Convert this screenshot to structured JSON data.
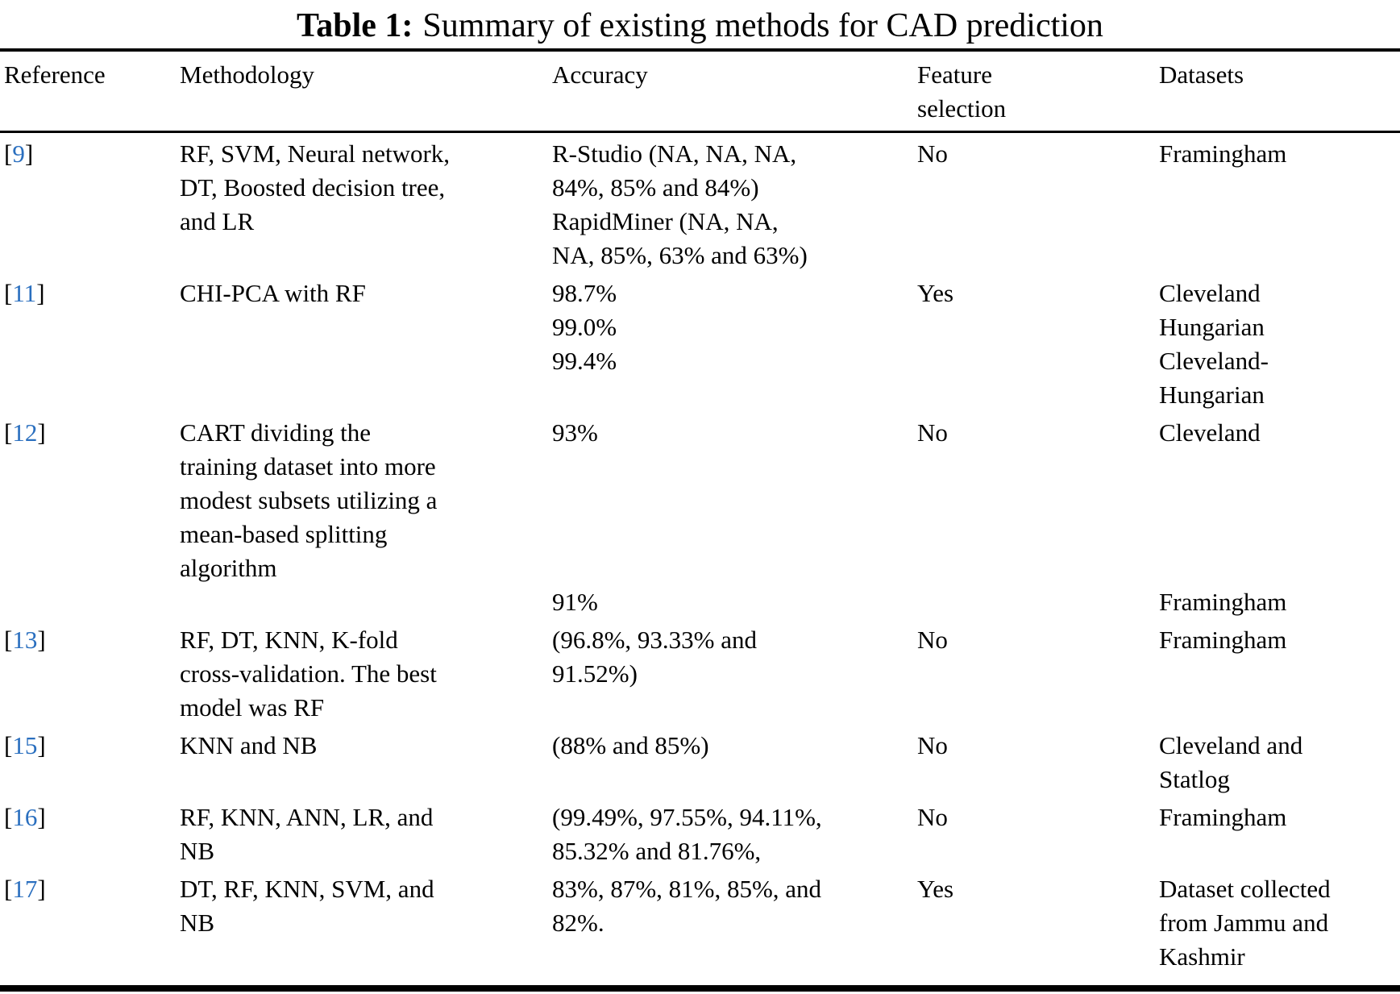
{
  "page": {
    "background": "#ffffff",
    "text_color": "#000000",
    "reference_link_color": "#2a6fbf"
  },
  "table": {
    "title_label": "Table 1:",
    "title_text": "Summary of existing methods for CAD prediction",
    "columns": [
      {
        "key": "reference",
        "label_lines": [
          "Reference"
        ]
      },
      {
        "key": "methodology",
        "label_lines": [
          "Methodology"
        ]
      },
      {
        "key": "accuracy",
        "label_lines": [
          "Accuracy"
        ]
      },
      {
        "key": "feature_selection",
        "label_lines": [
          "Feature",
          "selection"
        ]
      },
      {
        "key": "datasets",
        "label_lines": [
          "Datasets"
        ]
      }
    ],
    "rows": [
      {
        "reference": {
          "open": "[",
          "number": "9",
          "close": "]"
        },
        "methodology": [
          "RF, SVM, Neural network,",
          "DT, Boosted decision tree,",
          "and LR"
        ],
        "accuracy": [
          "R-Studio (NA, NA, NA,",
          "84%, 85% and 84%)",
          "RapidMiner (NA, NA,",
          "NA, 85%, 63% and 63%)"
        ],
        "feature_selection": [
          "No"
        ],
        "datasets": [
          "Framingham"
        ]
      },
      {
        "reference": {
          "open": "[",
          "number": "11",
          "close": "]"
        },
        "methodology": [
          "CHI-PCA with RF"
        ],
        "accuracy": [
          "98.7%",
          "99.0%",
          "99.4%"
        ],
        "feature_selection": [
          "Yes"
        ],
        "datasets": [
          "Cleveland",
          "Hungarian",
          "Cleveland-",
          "Hungarian"
        ]
      },
      {
        "reference": {
          "open": "[",
          "number": "12",
          "close": "]"
        },
        "methodology": [
          "CART dividing the",
          "training dataset into more",
          "modest subsets utilizing a",
          "mean-based splitting",
          "algorithm"
        ],
        "accuracy": [
          "93%",
          "",
          "",
          "",
          "",
          "91%"
        ],
        "feature_selection": [
          "No"
        ],
        "datasets": [
          "Cleveland",
          "",
          "",
          "",
          "",
          "Framingham"
        ]
      },
      {
        "reference": {
          "open": "[",
          "number": "13",
          "close": "]"
        },
        "methodology": [
          "RF, DT, KNN, K-fold",
          "cross-validation. The best",
          "model was RF"
        ],
        "accuracy": [
          "(96.8%, 93.33% and",
          "91.52%)"
        ],
        "feature_selection": [
          "No"
        ],
        "datasets": [
          "Framingham"
        ]
      },
      {
        "reference": {
          "open": "[",
          "number": "15",
          "close": "]"
        },
        "methodology": [
          "KNN and NB"
        ],
        "accuracy": [
          "(88% and 85%)"
        ],
        "feature_selection": [
          "No"
        ],
        "datasets": [
          "Cleveland and",
          "Statlog"
        ]
      },
      {
        "reference": {
          "open": "[",
          "number": "16",
          "close": "]"
        },
        "methodology": [
          "RF, KNN, ANN, LR, and",
          "NB"
        ],
        "accuracy": [
          "(99.49%, 97.55%, 94.11%,",
          "85.32% and 81.76%,"
        ],
        "feature_selection": [
          "No"
        ],
        "datasets": [
          "Framingham"
        ]
      },
      {
        "reference": {
          "open": "[",
          "number": "17",
          "close": "]"
        },
        "methodology": [
          "DT, RF, KNN, SVM, and",
          "NB"
        ],
        "accuracy": [
          "83%, 87%, 81%, 85%, and",
          "82%."
        ],
        "feature_selection": [
          "Yes"
        ],
        "datasets": [
          "Dataset collected",
          "from Jammu and",
          "Kashmir"
        ]
      }
    ]
  }
}
